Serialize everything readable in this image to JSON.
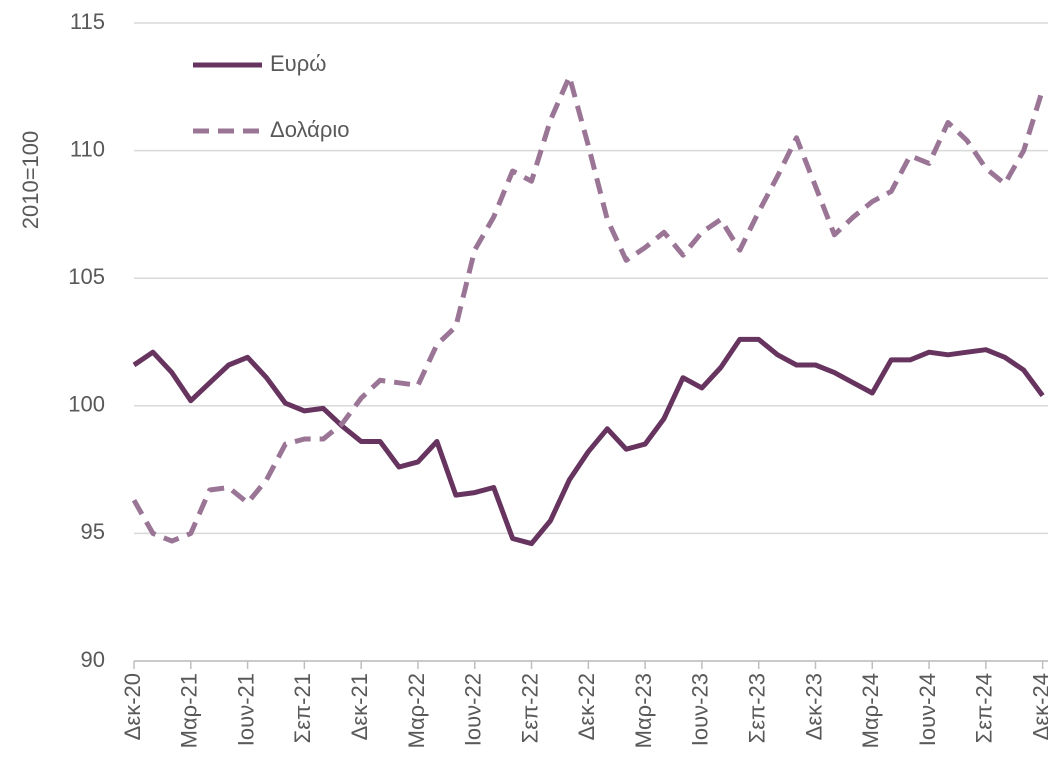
{
  "chart_data": {
    "type": "line",
    "y_label": "2010=100",
    "categories": [
      "Δεκ-20",
      null,
      null,
      "Μαρ-21",
      null,
      null,
      "Ιουν-21",
      null,
      null,
      "Σεπ-21",
      null,
      null,
      "Δεκ-21",
      null,
      null,
      "Μαρ-22",
      null,
      null,
      "Ιουν-22",
      null,
      null,
      "Σεπ-22",
      null,
      null,
      "Δεκ-22",
      null,
      null,
      "Μαρ-23",
      null,
      null,
      "Ιουν-23",
      null,
      null,
      "Σεπ-23",
      null,
      null,
      "Δεκ-23",
      null,
      null,
      "Μαρ-24",
      null,
      null,
      "Ιουν-24",
      null,
      null,
      "Σεπ-24",
      null,
      null,
      "Δεκ-24"
    ],
    "series": [
      {
        "name": "Ευρώ",
        "color": "#66345f",
        "dash": false,
        "values": [
          101.6,
          102.1,
          101.3,
          100.2,
          100.9,
          101.6,
          101.9,
          101.1,
          100.1,
          99.8,
          99.9,
          99.2,
          98.6,
          98.6,
          97.6,
          97.8,
          98.6,
          96.5,
          96.6,
          96.8,
          94.8,
          94.6,
          95.5,
          97.1,
          98.2,
          99.1,
          98.3,
          98.5,
          99.5,
          101.1,
          100.7,
          101.5,
          102.6,
          102.6,
          102.0,
          101.6,
          101.6,
          101.3,
          100.9,
          100.5,
          101.8,
          101.8,
          102.1,
          102.0,
          102.1,
          102.2,
          101.9,
          101.4,
          100.4
        ]
      },
      {
        "name": "Δολάριο",
        "color": "#9a7596",
        "dash": true,
        "values": [
          96.3,
          95.0,
          94.7,
          95.0,
          96.7,
          96.8,
          96.2,
          97.1,
          98.5,
          98.7,
          98.7,
          99.3,
          100.3,
          101.0,
          100.9,
          100.8,
          102.4,
          103.1,
          106.1,
          107.4,
          109.2,
          108.8,
          111.2,
          112.9,
          110.2,
          107.3,
          105.7,
          106.2,
          106.8,
          105.9,
          106.8,
          107.3,
          106.1,
          107.6,
          109.0,
          110.5,
          108.6,
          106.7,
          107.4,
          108.0,
          108.4,
          109.8,
          109.5,
          111.1,
          110.4,
          109.3,
          108.7,
          110.0,
          112.4
        ]
      }
    ],
    "ylim": [
      90,
      115
    ],
    "yticks": [
      90,
      95,
      100,
      105,
      110,
      115
    ],
    "grid": true
  }
}
